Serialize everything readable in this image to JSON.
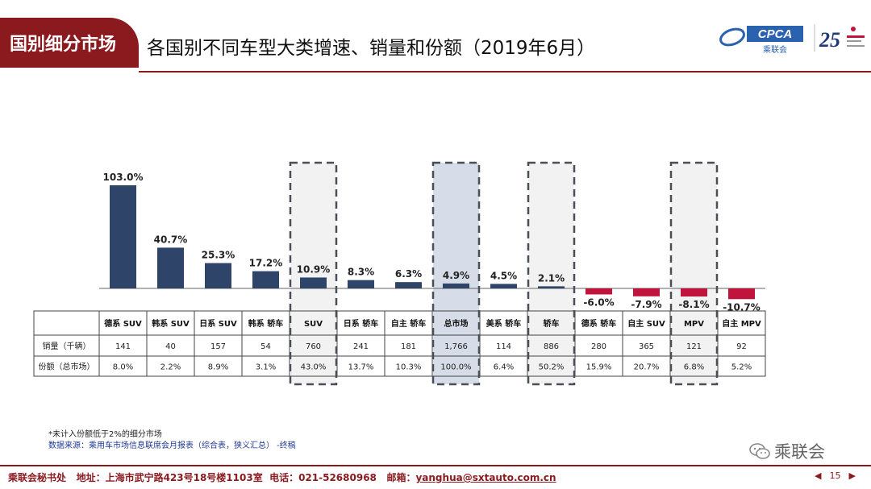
{
  "header": {
    "tag": "国别细分市场",
    "title": "各国别不同车型大类增速、销量和份额（2019年6月）",
    "logo_text": "CPCA",
    "logo_sub": "乘联会",
    "badge_number": "25"
  },
  "table": {
    "row_labels": [
      "销量（千辆）",
      "份额（总市场）"
    ]
  },
  "chart_data": {
    "type": "bar",
    "title": "各国别不同车型大类增速、销量和份额（2019年6月）",
    "categories": [
      "德系 SUV",
      "韩系 SUV",
      "日系 SUV",
      "韩系 轿车",
      "SUV",
      "日系 轿车",
      "自主 轿车",
      "总市场",
      "美系 轿车",
      "轿车",
      "德系 轿车",
      "自主 SUV",
      "MPV",
      "自主 MPV"
    ],
    "values": [
      103.0,
      40.7,
      25.3,
      17.2,
      10.9,
      8.3,
      6.3,
      4.9,
      4.5,
      2.1,
      -6.0,
      -7.9,
      -8.1,
      -10.7
    ],
    "value_labels": [
      "103.0%",
      "40.7%",
      "25.3%",
      "17.2%",
      "10.9%",
      "8.3%",
      "6.3%",
      "4.9%",
      "4.5%",
      "2.1%",
      "-6.0%",
      "-7.9%",
      "-8.1%",
      "-10.7%"
    ],
    "sales": [
      "141",
      "40",
      "157",
      "54",
      "760",
      "241",
      "181",
      "1,766",
      "114",
      "886",
      "280",
      "365",
      "121",
      "92"
    ],
    "shares": [
      "8.0%",
      "2.2%",
      "8.9%",
      "3.1%",
      "43.0%",
      "13.7%",
      "10.3%",
      "100.0%",
      "6.4%",
      "50.2%",
      "15.9%",
      "20.7%",
      "6.8%",
      "5.2%"
    ],
    "highlighted": [
      "SUV",
      "总市场",
      "轿车",
      "MPV"
    ],
    "shaded": [
      "总市场"
    ],
    "ylim": [
      -15,
      110
    ],
    "positive_color": "#2e4468",
    "negative_color": "#c0143c",
    "highlight_fill": "#f2f2f2",
    "shaded_fill": "#d6dde8"
  },
  "footnotes": {
    "note": "*未计入份额低于2%的细分市场",
    "source": "数据来源：乘用车市场信息联席会月报表（综合表，狭义汇总） -终稿"
  },
  "wechat_label": "乘联会",
  "footer": {
    "org": "乘联会秘书处",
    "address": "地址：上海市武宁路423号18号楼1103室",
    "phone": "电话：021-52680968",
    "email_label": "邮箱：",
    "email": "yanghua@sxtauto.com.cn",
    "page": "15"
  }
}
